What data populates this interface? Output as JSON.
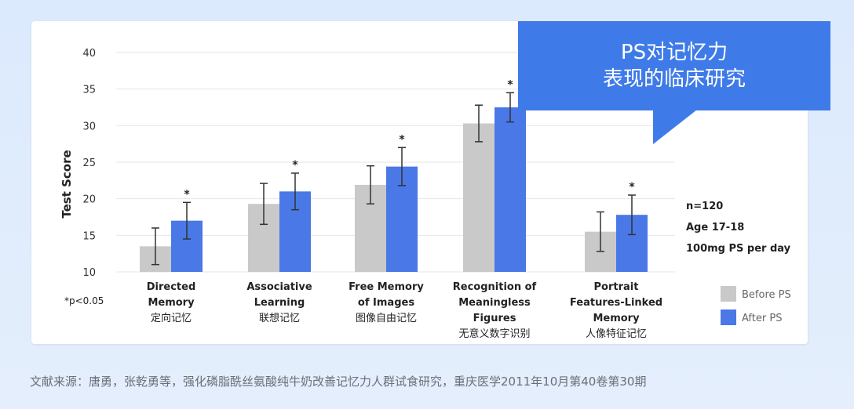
{
  "callout": {
    "line1": "PS对记忆力",
    "line2": "表现的临床研究"
  },
  "source": "文献来源：唐勇，张乾勇等，强化磷脂酰丝氨酸纯牛奶改善记忆力人群试食研究，重庆医学2011年10月第40卷第30期",
  "colors": {
    "before": "#c9c9c9",
    "after": "#4a78e6",
    "grid": "#e6e6e6",
    "text": "#222222",
    "tick": "#333333"
  },
  "chart_data": {
    "type": "bar",
    "ylabel": "Test Score",
    "ylim": [
      10,
      40
    ],
    "yticks": [
      10,
      15,
      20,
      25,
      30,
      35,
      40
    ],
    "grid": true,
    "legend_position": "bottom-right",
    "categories": [
      [
        "Directed",
        "Memory",
        "定向记忆"
      ],
      [
        "Associative",
        "Learning",
        "联想记忆"
      ],
      [
        "Free Memory",
        "of Images",
        "图像自由记忆"
      ],
      [
        "Recognition of",
        "Meaningless",
        "Figures",
        "无意义数字识别"
      ],
      [
        "Portrait",
        "Features-Linked",
        "Memory",
        "人像特征记忆"
      ]
    ],
    "series": [
      {
        "name": "Before PS",
        "values": [
          13.5,
          19.3,
          21.9,
          30.3,
          15.5
        ],
        "error": [
          2.5,
          2.8,
          2.6,
          2.5,
          2.7
        ]
      },
      {
        "name": "After PS",
        "values": [
          17.0,
          21.0,
          24.4,
          32.5,
          17.8
        ],
        "error": [
          2.5,
          2.5,
          2.6,
          2.0,
          2.7
        ]
      }
    ],
    "significance": [
      "*",
      "*",
      "*",
      "*",
      "*"
    ],
    "notes": [
      "n=120",
      "Age 17-18",
      "100mg PS per day"
    ],
    "footnote": "*p<0.05"
  }
}
